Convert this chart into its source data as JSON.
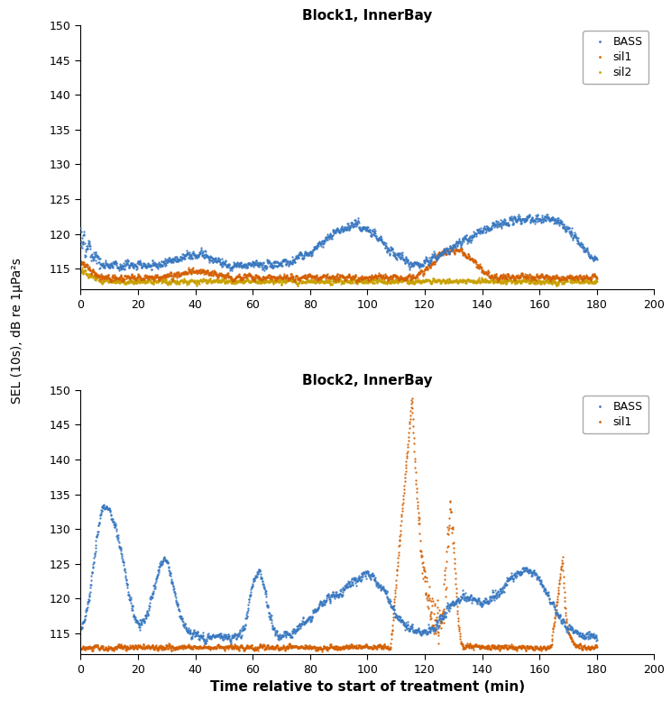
{
  "title1": "Block1, InnerBay",
  "title2": "Block2, InnerBay",
  "xlabel": "Time relative to start of treatment (min)",
  "ylabel": "SEL (10s), dB re 1μPa²s",
  "ylim": [
    112,
    150
  ],
  "xlim": [
    0,
    200
  ],
  "yticks": [
    115,
    120,
    125,
    130,
    135,
    140,
    145,
    150
  ],
  "xticks": [
    0,
    20,
    40,
    60,
    80,
    100,
    120,
    140,
    160,
    180,
    200
  ],
  "color_bass": "#3777C0",
  "color_sil1": "#D45F00",
  "color_sil2": "#C8A000",
  "marker_size": 1.2,
  "seed": 42
}
